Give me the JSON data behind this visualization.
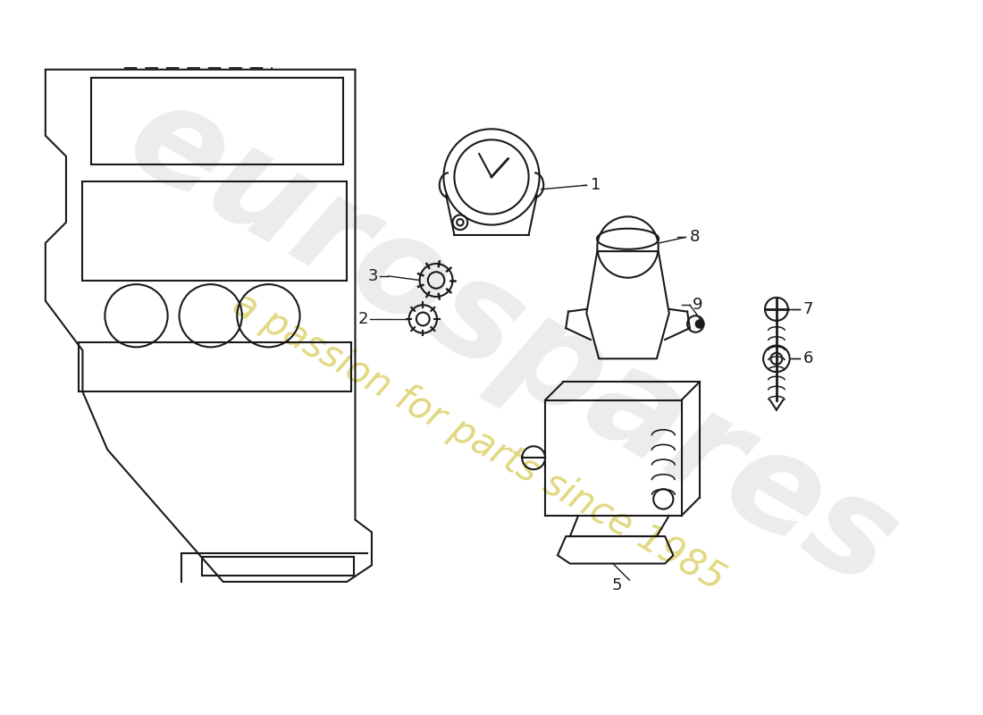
{
  "background_color": "#ffffff",
  "line_color": "#1a1a1a",
  "watermark_text1": "eurospares",
  "watermark_text2": "a passion for parts since 1985",
  "watermark_color1": "#c8c8c8",
  "watermark_color2": "#d4c84a",
  "figsize": [
    11.0,
    8.0
  ],
  "dpi": 100
}
